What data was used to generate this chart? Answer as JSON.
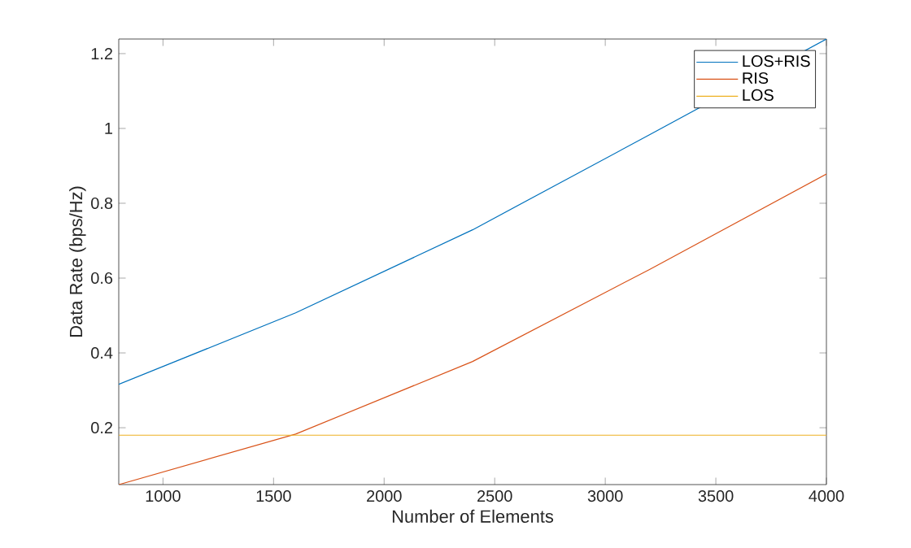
{
  "chart_data": {
    "type": "line",
    "xlabel": "Number of Elements",
    "ylabel": "Data Rate (bps/Hz)",
    "x": [
      800,
      1600,
      2400,
      3200,
      4000
    ],
    "series": [
      {
        "name": "LOS+RIS",
        "color": "#0072bd",
        "values": [
          0.316,
          0.507,
          0.729,
          0.983,
          1.239
        ]
      },
      {
        "name": "RIS",
        "color": "#d95319",
        "values": [
          0.048,
          0.183,
          0.377,
          0.623,
          0.878
        ]
      },
      {
        "name": "LOS",
        "color": "#edb120",
        "values": [
          0.18,
          0.18,
          0.18,
          0.18,
          0.18
        ]
      }
    ],
    "xlim": [
      800,
      4000
    ],
    "ylim": [
      0.048,
      1.239
    ],
    "xticks": [
      1000,
      1500,
      2000,
      2500,
      3000,
      3500,
      4000
    ],
    "yticks": [
      0.2,
      0.4,
      0.6,
      0.8,
      1,
      1.2
    ],
    "legend": "top right",
    "grid": false,
    "marker": "none",
    "line_style": "solid"
  }
}
